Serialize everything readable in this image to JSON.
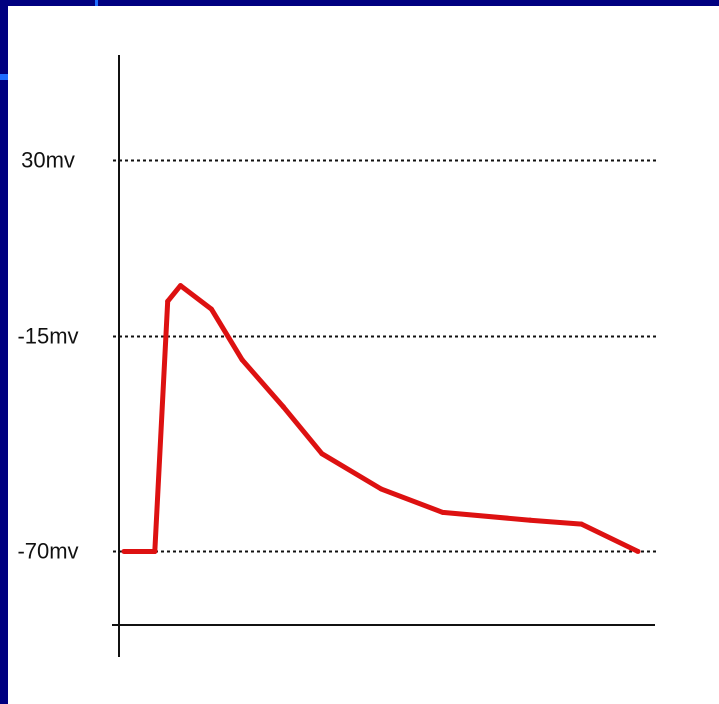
{
  "chart_data": {
    "type": "line",
    "title": "",
    "xlabel": "",
    "ylabel": "",
    "unit": "mv",
    "ylim": [
      -97,
      57
    ],
    "xlim": [
      0,
      100
    ],
    "grid": false,
    "reference_lines": [
      {
        "value": 30,
        "label": "30mv"
      },
      {
        "value": -15,
        "label": "-15mv"
      },
      {
        "value": -70,
        "label": "-70mv"
      }
    ],
    "series": [
      {
        "color": "#dd1111",
        "points": [
          {
            "x": 0,
            "y": -70
          },
          {
            "x": 6,
            "y": -70
          },
          {
            "x": 8.5,
            "y": -6
          },
          {
            "x": 11,
            "y": -2
          },
          {
            "x": 17,
            "y": -8
          },
          {
            "x": 23,
            "y": -21
          },
          {
            "x": 31,
            "y": -33
          },
          {
            "x": 38.5,
            "y": -45
          },
          {
            "x": 50,
            "y": -54
          },
          {
            "x": 62,
            "y": -60
          },
          {
            "x": 79,
            "y": -62
          },
          {
            "x": 89,
            "y": -63
          },
          {
            "x": 100,
            "y": -70
          }
        ]
      }
    ]
  },
  "colors": {
    "frame": "#000080",
    "background": "#ffffff",
    "axis": "#111111",
    "reference_line": "#111111",
    "trace": "#dd1111"
  }
}
